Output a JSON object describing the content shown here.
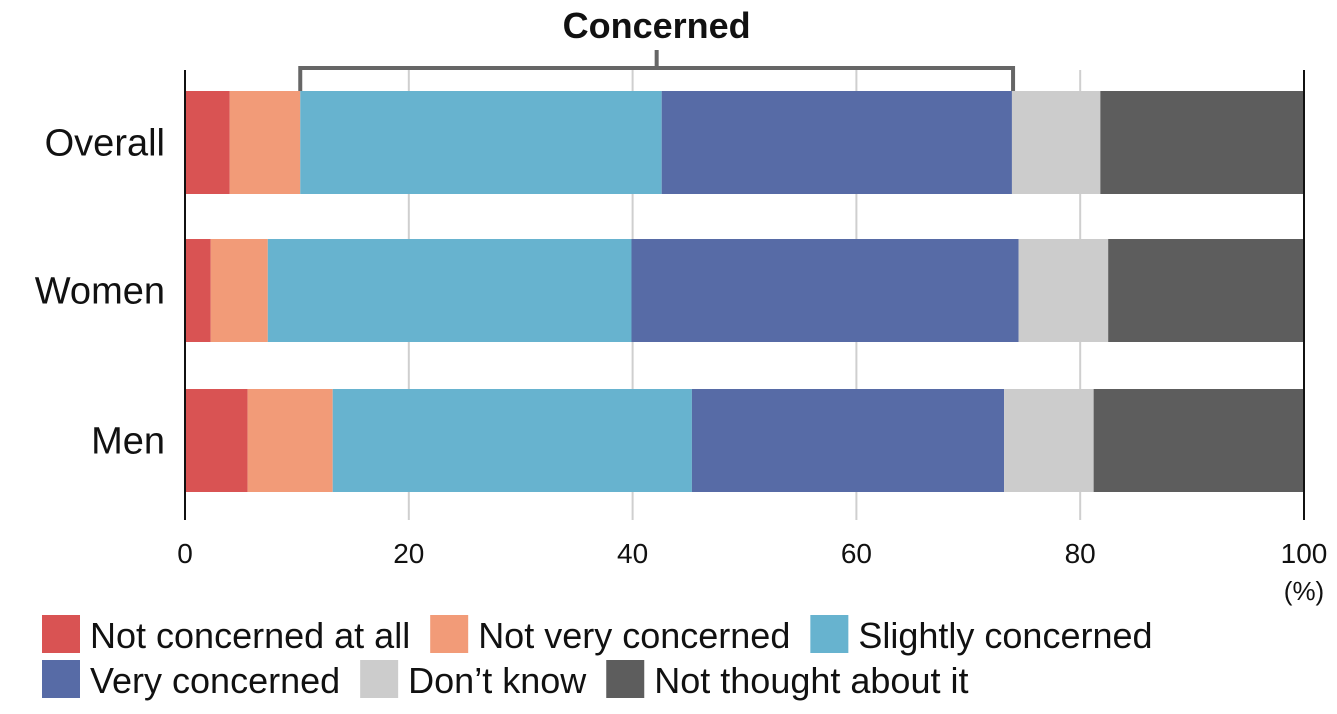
{
  "chart_data": {
    "type": "bar",
    "orientation": "horizontal",
    "stacked": true,
    "categories": [
      "Overall",
      "Women",
      "Men"
    ],
    "series": [
      {
        "name": "Not concerned at all",
        "color": "#d95353",
        "values": [
          4.0,
          2.3,
          5.6
        ]
      },
      {
        "name": "Not very concerned",
        "color": "#f29b78",
        "values": [
          6.3,
          5.1,
          7.6
        ]
      },
      {
        "name": "Slightly concerned",
        "color": "#67b3cf",
        "values": [
          32.3,
          32.5,
          32.1
        ]
      },
      {
        "name": "Very concerned",
        "color": "#576ba6",
        "values": [
          31.3,
          34.6,
          27.9
        ]
      },
      {
        "name": "Don’t know",
        "color": "#cccccc",
        "values": [
          7.9,
          8.0,
          8.0
        ]
      },
      {
        "name": "Not thought about it",
        "color": "#5d5d5d",
        "values": [
          18.2,
          17.5,
          18.8
        ]
      }
    ],
    "x_ticks": [
      "0",
      "20",
      "40",
      "60",
      "80",
      "100"
    ],
    "xlim": [
      0,
      100
    ],
    "x_unit": "(%)",
    "bracket": {
      "label": "Concerned",
      "from": 10.3,
      "to": 74.0
    },
    "grid": true,
    "legend_position": "bottom"
  }
}
